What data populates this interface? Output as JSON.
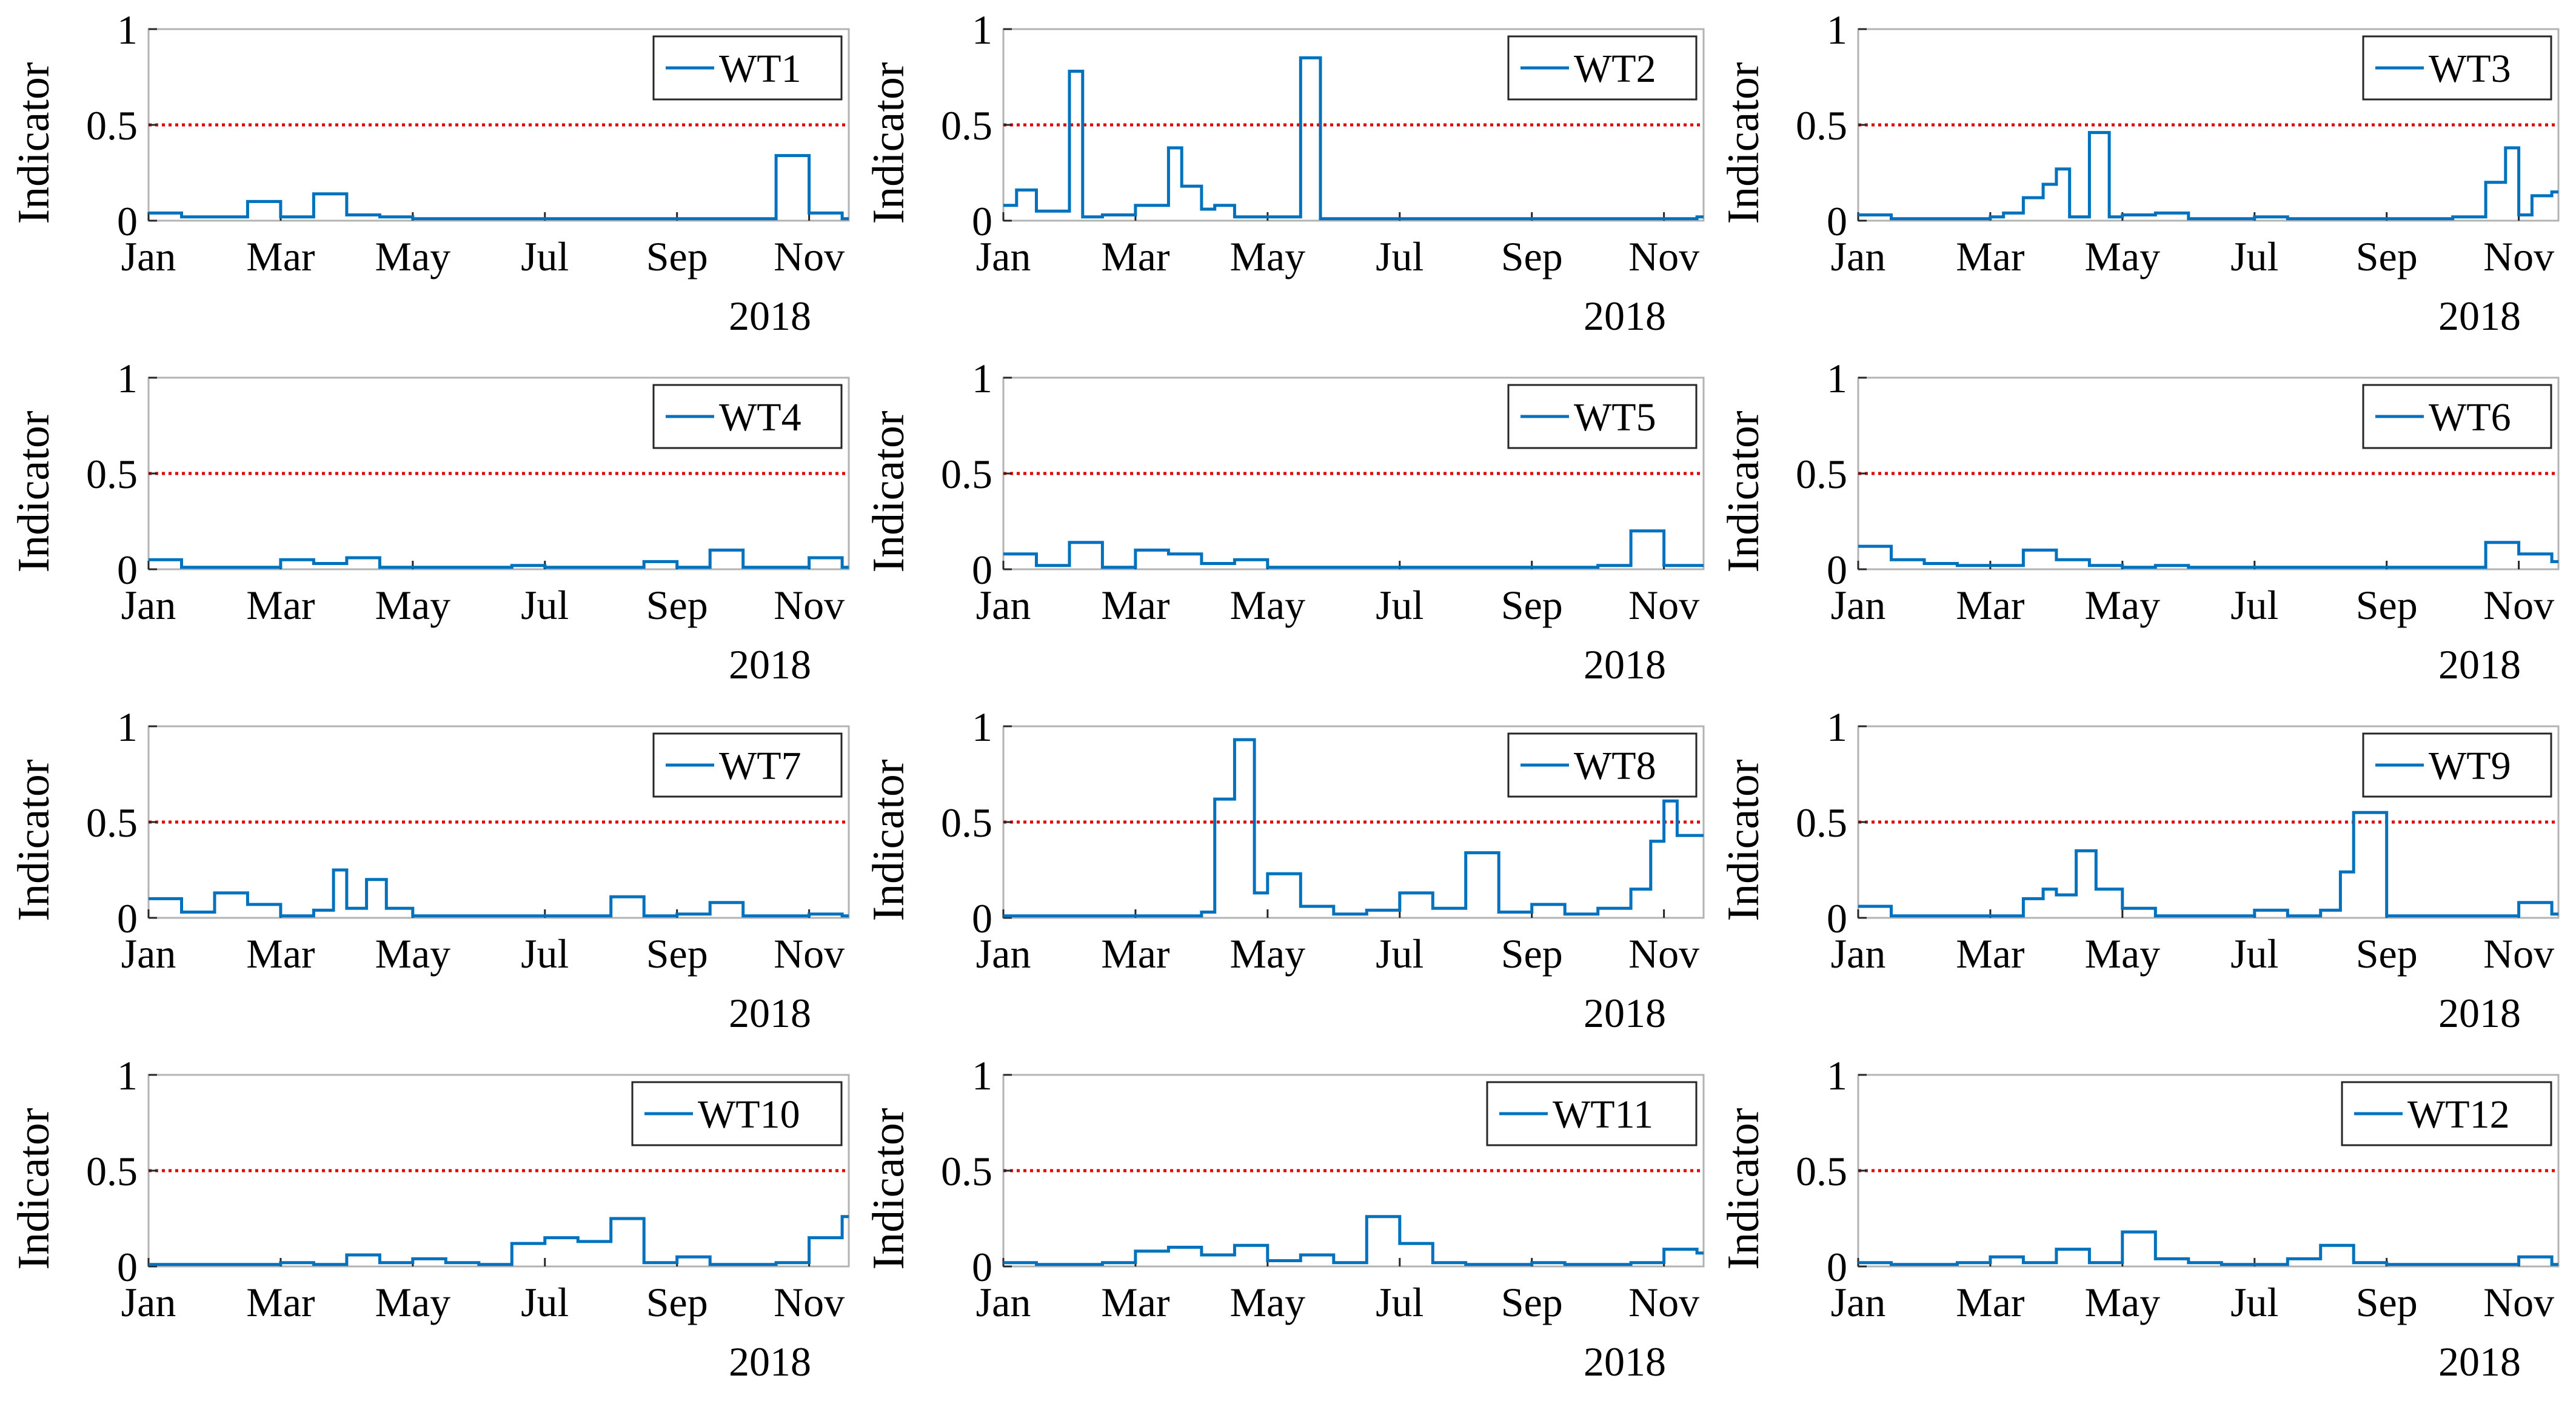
{
  "figure": {
    "ylabel": "Indicator",
    "year_label": "2018",
    "threshold": 0.5,
    "line_color": "#0072BD",
    "threshold_color": "#E00000",
    "x_ticks": [
      "Jan",
      "Mar",
      "May",
      "Jul",
      "Sep",
      "Nov"
    ],
    "y_ticks": [
      "0",
      "0.5",
      "1"
    ]
  },
  "chart_data": [
    {
      "type": "line",
      "title": "",
      "name": "WT1",
      "xlabel": "2018",
      "ylabel": "Indicator",
      "xlim_months": [
        0,
        10.6
      ],
      "ylim": [
        0,
        1
      ],
      "x_months": [
        0.0,
        0.5,
        1.0,
        1.5,
        2.0,
        2.5,
        3.0,
        3.5,
        4.0,
        4.5,
        5.0,
        5.5,
        6.0,
        6.5,
        7.0,
        7.5,
        8.0,
        8.5,
        9.0,
        9.5,
        10.0,
        10.5
      ],
      "y": [
        0.04,
        0.02,
        0.02,
        0.1,
        0.02,
        0.14,
        0.03,
        0.02,
        0.01,
        0.01,
        0.01,
        0.01,
        0.01,
        0.01,
        0.01,
        0.01,
        0.01,
        0.01,
        0.01,
        0.34,
        0.04,
        0.01
      ]
    },
    {
      "type": "line",
      "title": "",
      "name": "WT2",
      "xlabel": "2018",
      "ylabel": "Indicator",
      "xlim_months": [
        0,
        10.6
      ],
      "ylim": [
        0,
        1
      ],
      "x_months": [
        0.0,
        0.2,
        0.5,
        1.0,
        1.2,
        1.5,
        2.0,
        2.5,
        2.7,
        3.0,
        3.2,
        3.5,
        4.0,
        4.5,
        4.8,
        5.0,
        5.5,
        6.0,
        6.5,
        7.0,
        7.5,
        8.0,
        8.5,
        9.0,
        9.5,
        10.0,
        10.5
      ],
      "y": [
        0.08,
        0.16,
        0.05,
        0.78,
        0.02,
        0.03,
        0.08,
        0.38,
        0.18,
        0.06,
        0.08,
        0.02,
        0.02,
        0.85,
        0.01,
        0.01,
        0.01,
        0.01,
        0.01,
        0.01,
        0.01,
        0.01,
        0.01,
        0.01,
        0.01,
        0.01,
        0.02
      ]
    },
    {
      "type": "line",
      "title": "",
      "name": "WT3",
      "xlabel": "2018",
      "ylabel": "Indicator",
      "xlim_months": [
        0,
        10.6
      ],
      "ylim": [
        0,
        1
      ],
      "x_months": [
        0.0,
        0.5,
        1.0,
        1.5,
        2.0,
        2.2,
        2.5,
        2.8,
        3.0,
        3.2,
        3.5,
        3.8,
        4.0,
        4.5,
        5.0,
        5.5,
        6.0,
        6.5,
        7.0,
        7.5,
        8.0,
        8.5,
        9.0,
        9.5,
        9.8,
        10.0,
        10.2,
        10.5
      ],
      "y": [
        0.03,
        0.01,
        0.01,
        0.01,
        0.02,
        0.04,
        0.12,
        0.19,
        0.27,
        0.02,
        0.46,
        0.02,
        0.03,
        0.04,
        0.01,
        0.01,
        0.02,
        0.01,
        0.01,
        0.01,
        0.01,
        0.01,
        0.02,
        0.2,
        0.38,
        0.03,
        0.13,
        0.15
      ]
    },
    {
      "type": "line",
      "title": "",
      "name": "WT4",
      "xlabel": "2018",
      "ylabel": "Indicator",
      "xlim_months": [
        0,
        10.6
      ],
      "ylim": [
        0,
        1
      ],
      "x_months": [
        0.0,
        0.5,
        1.0,
        1.5,
        2.0,
        2.5,
        3.0,
        3.5,
        4.0,
        4.5,
        5.0,
        5.5,
        6.0,
        6.5,
        7.0,
        7.5,
        8.0,
        8.5,
        9.0,
        9.5,
        10.0,
        10.5
      ],
      "y": [
        0.05,
        0.01,
        0.01,
        0.01,
        0.05,
        0.03,
        0.06,
        0.01,
        0.01,
        0.01,
        0.01,
        0.02,
        0.01,
        0.01,
        0.01,
        0.04,
        0.01,
        0.1,
        0.01,
        0.01,
        0.06,
        0.01
      ]
    },
    {
      "type": "line",
      "title": "",
      "name": "WT5",
      "xlabel": "2018",
      "ylabel": "Indicator",
      "xlim_months": [
        0,
        10.6
      ],
      "ylim": [
        0,
        1
      ],
      "x_months": [
        0.0,
        0.5,
        1.0,
        1.5,
        2.0,
        2.5,
        3.0,
        3.5,
        4.0,
        4.5,
        5.0,
        5.5,
        6.0,
        6.5,
        7.0,
        7.5,
        8.0,
        8.5,
        9.0,
        9.5,
        10.0,
        10.5
      ],
      "y": [
        0.08,
        0.02,
        0.14,
        0.01,
        0.1,
        0.08,
        0.03,
        0.05,
        0.01,
        0.01,
        0.01,
        0.01,
        0.01,
        0.01,
        0.01,
        0.01,
        0.01,
        0.01,
        0.02,
        0.2,
        0.02,
        0.02
      ]
    },
    {
      "type": "line",
      "title": "",
      "name": "WT6",
      "xlabel": "2018",
      "ylabel": "Indicator",
      "xlim_months": [
        0,
        10.6
      ],
      "ylim": [
        0,
        1
      ],
      "x_months": [
        0.0,
        0.5,
        1.0,
        1.5,
        2.0,
        2.5,
        3.0,
        3.5,
        4.0,
        4.5,
        5.0,
        5.5,
        6.0,
        6.5,
        7.0,
        7.5,
        8.0,
        8.5,
        9.0,
        9.5,
        10.0,
        10.5
      ],
      "y": [
        0.12,
        0.05,
        0.03,
        0.02,
        0.02,
        0.1,
        0.05,
        0.02,
        0.01,
        0.02,
        0.01,
        0.01,
        0.01,
        0.01,
        0.01,
        0.01,
        0.01,
        0.01,
        0.01,
        0.14,
        0.08,
        0.04
      ]
    },
    {
      "type": "line",
      "title": "",
      "name": "WT7",
      "xlabel": "2018",
      "ylabel": "Indicator",
      "xlim_months": [
        0,
        10.6
      ],
      "ylim": [
        0,
        1
      ],
      "x_months": [
        0.0,
        0.5,
        1.0,
        1.5,
        2.0,
        2.5,
        2.8,
        3.0,
        3.3,
        3.6,
        4.0,
        4.5,
        5.0,
        5.5,
        6.0,
        6.5,
        7.0,
        7.5,
        8.0,
        8.5,
        9.0,
        9.5,
        10.0,
        10.5
      ],
      "y": [
        0.1,
        0.03,
        0.13,
        0.07,
        0.01,
        0.04,
        0.25,
        0.05,
        0.2,
        0.05,
        0.01,
        0.01,
        0.01,
        0.01,
        0.01,
        0.01,
        0.11,
        0.01,
        0.02,
        0.08,
        0.01,
        0.01,
        0.02,
        0.01
      ]
    },
    {
      "type": "line",
      "title": "",
      "name": "WT8",
      "xlabel": "2018",
      "ylabel": "Indicator",
      "xlim_months": [
        0,
        10.6
      ],
      "ylim": [
        0,
        1
      ],
      "x_months": [
        0.0,
        0.5,
        1.0,
        1.5,
        2.0,
        2.5,
        3.0,
        3.2,
        3.5,
        3.8,
        4.0,
        4.5,
        5.0,
        5.5,
        6.0,
        6.5,
        7.0,
        7.5,
        8.0,
        8.5,
        9.0,
        9.5,
        9.8,
        10.0,
        10.2,
        10.5
      ],
      "y": [
        0.01,
        0.01,
        0.01,
        0.01,
        0.01,
        0.01,
        0.03,
        0.62,
        0.93,
        0.13,
        0.23,
        0.06,
        0.02,
        0.04,
        0.13,
        0.05,
        0.34,
        0.03,
        0.07,
        0.02,
        0.05,
        0.15,
        0.4,
        0.61,
        0.43,
        0.43
      ]
    },
    {
      "type": "line",
      "title": "",
      "name": "WT9",
      "xlabel": "2018",
      "ylabel": "Indicator",
      "xlim_months": [
        0,
        10.6
      ],
      "ylim": [
        0,
        1
      ],
      "x_months": [
        0.0,
        0.5,
        1.0,
        1.5,
        2.0,
        2.5,
        2.8,
        3.0,
        3.3,
        3.6,
        4.0,
        4.5,
        5.0,
        5.5,
        6.0,
        6.5,
        7.0,
        7.3,
        7.5,
        8.0,
        8.5,
        9.0,
        9.5,
        10.0,
        10.5
      ],
      "y": [
        0.06,
        0.01,
        0.01,
        0.01,
        0.01,
        0.1,
        0.15,
        0.12,
        0.35,
        0.15,
        0.05,
        0.01,
        0.01,
        0.01,
        0.04,
        0.01,
        0.04,
        0.24,
        0.55,
        0.01,
        0.01,
        0.01,
        0.01,
        0.08,
        0.02
      ]
    },
    {
      "type": "line",
      "title": "",
      "name": "WT10",
      "xlabel": "2018",
      "ylabel": "Indicator",
      "xlim_months": [
        0,
        10.6
      ],
      "ylim": [
        0,
        1
      ],
      "x_months": [
        0.0,
        0.5,
        1.0,
        1.5,
        2.0,
        2.5,
        3.0,
        3.5,
        4.0,
        4.5,
        5.0,
        5.5,
        6.0,
        6.5,
        7.0,
        7.5,
        8.0,
        8.5,
        9.0,
        9.5,
        10.0,
        10.5
      ],
      "y": [
        0.01,
        0.01,
        0.01,
        0.01,
        0.02,
        0.01,
        0.06,
        0.02,
        0.04,
        0.02,
        0.01,
        0.12,
        0.15,
        0.13,
        0.25,
        0.02,
        0.05,
        0.01,
        0.01,
        0.02,
        0.15,
        0.26
      ]
    },
    {
      "type": "line",
      "title": "",
      "name": "WT11",
      "xlabel": "2018",
      "ylabel": "Indicator",
      "xlim_months": [
        0,
        10.6
      ],
      "ylim": [
        0,
        1
      ],
      "x_months": [
        0.0,
        0.5,
        1.0,
        1.5,
        2.0,
        2.5,
        3.0,
        3.5,
        4.0,
        4.5,
        5.0,
        5.5,
        6.0,
        6.5,
        7.0,
        7.5,
        8.0,
        8.5,
        9.0,
        9.5,
        10.0,
        10.5
      ],
      "y": [
        0.02,
        0.01,
        0.01,
        0.02,
        0.08,
        0.1,
        0.06,
        0.11,
        0.03,
        0.06,
        0.02,
        0.26,
        0.12,
        0.02,
        0.01,
        0.01,
        0.02,
        0.01,
        0.01,
        0.02,
        0.09,
        0.07
      ]
    },
    {
      "type": "line",
      "title": "",
      "name": "WT12",
      "xlabel": "2018",
      "ylabel": "Indicator",
      "xlim_months": [
        0,
        10.6
      ],
      "ylim": [
        0,
        1
      ],
      "x_months": [
        0.0,
        0.5,
        1.0,
        1.5,
        2.0,
        2.5,
        3.0,
        3.5,
        4.0,
        4.5,
        5.0,
        5.5,
        6.0,
        6.5,
        7.0,
        7.5,
        8.0,
        8.5,
        9.0,
        9.5,
        10.0,
        10.5
      ],
      "y": [
        0.02,
        0.01,
        0.01,
        0.02,
        0.05,
        0.02,
        0.09,
        0.02,
        0.18,
        0.04,
        0.02,
        0.01,
        0.01,
        0.04,
        0.11,
        0.02,
        0.01,
        0.01,
        0.01,
        0.01,
        0.05,
        0.01
      ]
    }
  ]
}
